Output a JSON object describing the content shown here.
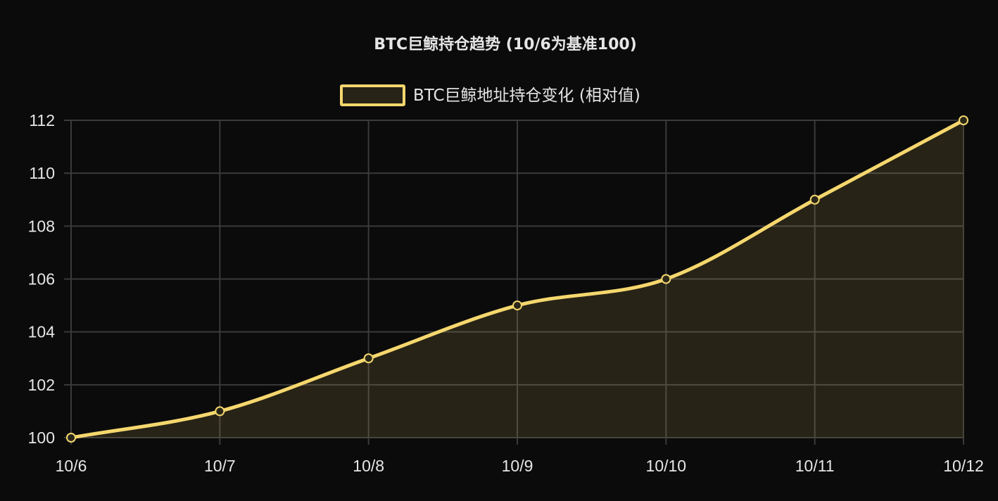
{
  "chart_data": {
    "type": "line",
    "title": "BTC巨鲸持仓趋势 (10/6为基准100)",
    "xlabel": "",
    "ylabel": "",
    "categories": [
      "10/6",
      "10/7",
      "10/8",
      "10/9",
      "10/10",
      "10/11",
      "10/12"
    ],
    "series": [
      {
        "name": "BTC巨鲸地址持仓变化 (相对值)",
        "values": [
          100,
          101,
          103,
          105,
          106,
          109,
          112
        ],
        "color": "#f5d76e",
        "fill": "rgba(245, 215, 110, 0.12)"
      }
    ],
    "ylim": [
      100,
      112
    ],
    "yticks": [
      100,
      102,
      104,
      106,
      108,
      110,
      112
    ],
    "grid": true,
    "legend_position": "top-center",
    "smooth": true
  },
  "colors": {
    "background": "#0b0b0b",
    "grid": "#3a3a3a",
    "text": "#e6e6e6",
    "accent": "#f5d76e"
  }
}
